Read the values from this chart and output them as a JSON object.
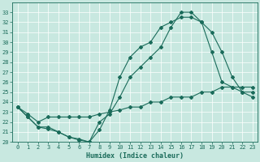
{
  "title": "",
  "xlabel": "Humidex (Indice chaleur)",
  "ylabel": "",
  "bg_color": "#c8e8e0",
  "line_color": "#1a6b5a",
  "grid_color": "#b0d8d0",
  "ylim": [
    20,
    34
  ],
  "xlim": [
    -0.5,
    23.5
  ],
  "yticks": [
    20,
    21,
    22,
    23,
    24,
    25,
    26,
    27,
    28,
    29,
    30,
    31,
    32,
    33
  ],
  "xticks": [
    0,
    1,
    2,
    3,
    4,
    5,
    6,
    7,
    8,
    9,
    10,
    11,
    12,
    13,
    14,
    15,
    16,
    17,
    18,
    19,
    20,
    21,
    22,
    23
  ],
  "xtick_labels": [
    "0",
    "1",
    "2",
    "3",
    "4",
    "5",
    "6",
    "7",
    "8",
    "9",
    "10",
    "11",
    "12",
    "13",
    "14",
    "15",
    "16",
    "17",
    "18",
    "19",
    "20",
    "21",
    "22",
    "23"
  ],
  "line1_x": [
    0,
    1,
    2,
    3,
    4,
    5,
    6,
    7,
    8,
    9,
    10,
    11,
    12,
    13,
    14,
    15,
    16,
    17,
    18,
    19,
    20,
    21,
    22,
    23
  ],
  "line1_y": [
    23.5,
    22.5,
    21.5,
    21.5,
    21.0,
    20.5,
    20.2,
    20.0,
    21.2,
    23.2,
    26.5,
    28.5,
    29.5,
    30.0,
    31.5,
    32.0,
    32.5,
    32.5,
    32.0,
    31.0,
    29.0,
    26.5,
    25.0,
    24.5
  ],
  "line2_x": [
    0,
    1,
    2,
    3,
    4,
    5,
    6,
    7,
    8,
    9,
    10,
    11,
    12,
    13,
    14,
    15,
    16,
    17,
    18,
    19,
    20,
    21,
    22,
    23
  ],
  "line2_y": [
    23.5,
    22.5,
    21.5,
    21.3,
    21.0,
    20.5,
    20.3,
    20.0,
    22.0,
    22.8,
    24.5,
    26.5,
    27.5,
    28.5,
    29.5,
    31.5,
    33.0,
    33.0,
    32.0,
    29.0,
    26.0,
    25.5,
    25.0,
    25.0
  ],
  "line3_x": [
    0,
    1,
    2,
    3,
    4,
    5,
    6,
    7,
    8,
    9,
    10,
    11,
    12,
    13,
    14,
    15,
    16,
    17,
    18,
    19,
    20,
    21,
    22,
    23
  ],
  "line3_y": [
    23.5,
    22.8,
    22.0,
    22.5,
    22.5,
    22.5,
    22.5,
    22.5,
    22.8,
    23.0,
    23.2,
    23.5,
    23.5,
    24.0,
    24.0,
    24.5,
    24.5,
    24.5,
    25.0,
    25.0,
    25.5,
    25.5,
    25.5,
    25.5
  ]
}
